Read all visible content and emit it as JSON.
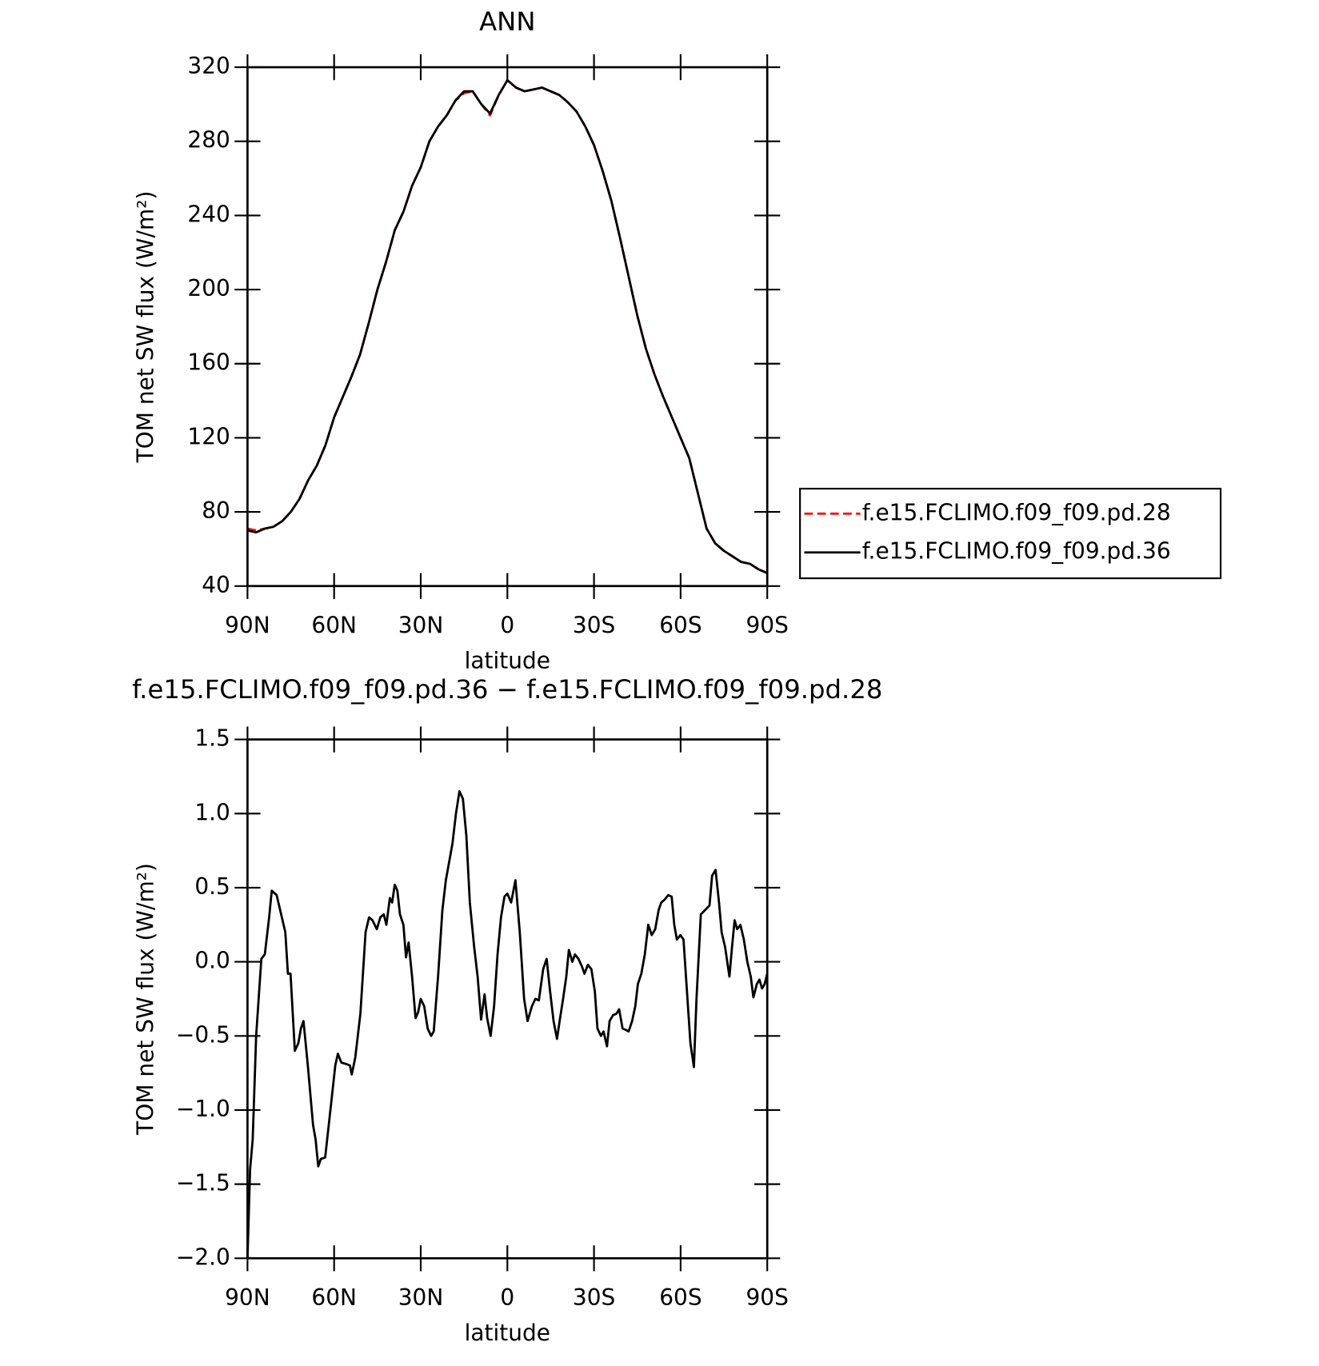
{
  "chart_data": [
    {
      "type": "line",
      "title": "ANN",
      "xlabel": "latitude",
      "ylabel": "TOM net SW flux (W/m²)",
      "xlim": [
        90,
        -90
      ],
      "xticks": [
        {
          "value": 90,
          "label": "90N"
        },
        {
          "value": 60,
          "label": "60N"
        },
        {
          "value": 30,
          "label": "30N"
        },
        0,
        {
          "value": -30,
          "label": "30S"
        },
        {
          "value": -60,
          "label": "60S"
        },
        {
          "value": -90,
          "label": "90S"
        }
      ],
      "ylim": [
        40,
        320
      ],
      "yticks": [
        40,
        80,
        120,
        160,
        200,
        240,
        280,
        320
      ],
      "legend": "right",
      "x": [
        90,
        87,
        84,
        81,
        78,
        75,
        72,
        69,
        66,
        63,
        60,
        57,
        54,
        51,
        48,
        45,
        42,
        39,
        36,
        33,
        30,
        27,
        24,
        21,
        18,
        15,
        12,
        9,
        6,
        3,
        0,
        -3,
        -6,
        -9,
        -12,
        -15,
        -18,
        -21,
        -24,
        -27,
        -30,
        -33,
        -36,
        -39,
        -42,
        -45,
        -48,
        -51,
        -54,
        -57,
        -60,
        -63,
        -66,
        -69,
        -72,
        -75,
        -78,
        -81,
        -84,
        -87,
        -90
      ],
      "series": [
        {
          "name": "f.e15.FCLIMO.f09_f09.pd.28",
          "color": "#ff0000",
          "linestyle": "dashed",
          "values": [
            71,
            70,
            71,
            72,
            75,
            80,
            87,
            97,
            105,
            116,
            131,
            142,
            153,
            165,
            182,
            200,
            215,
            232,
            242,
            256,
            266,
            280,
            288,
            294,
            302,
            306,
            307,
            300,
            294,
            305,
            313,
            309,
            307,
            308,
            309,
            307,
            305,
            301,
            296,
            288,
            278,
            264,
            248,
            228,
            207,
            186,
            168,
            154,
            142,
            131,
            120,
            109,
            90,
            71,
            63,
            59,
            56,
            53,
            52,
            49,
            47
          ]
        },
        {
          "name": "f.e15.FCLIMO.f09_f09.pd.36",
          "color": "#000000",
          "linestyle": "solid",
          "values": [
            70,
            69,
            71,
            72,
            75,
            80,
            87,
            97,
            105,
            116,
            131,
            142,
            153,
            165,
            182,
            200,
            215,
            232,
            242,
            256,
            266,
            280,
            288,
            294,
            302,
            307,
            307,
            300,
            295,
            305,
            313,
            309,
            307,
            308,
            309,
            307,
            305,
            301,
            296,
            288,
            278,
            264,
            248,
            228,
            207,
            186,
            168,
            154,
            142,
            131,
            120,
            109,
            90,
            71,
            63,
            59,
            56,
            53,
            52,
            49,
            47
          ]
        }
      ]
    },
    {
      "type": "line",
      "title": "f.e15.FCLIMO.f09_f09.pd.36 − f.e15.FCLIMO.f09_f09.pd.28",
      "xlabel": "latitude",
      "ylabel": "TOM net SW flux (W/m²)",
      "xlim": [
        90,
        -90
      ],
      "xticks": [
        {
          "value": 90,
          "label": "90N"
        },
        {
          "value": 60,
          "label": "60N"
        },
        {
          "value": 30,
          "label": "30N"
        },
        0,
        {
          "value": -30,
          "label": "30S"
        },
        {
          "value": -60,
          "label": "60S"
        },
        {
          "value": -90,
          "label": "90S"
        }
      ],
      "ylim": [
        -2,
        1.5
      ],
      "yticks": [
        {
          "value": -2,
          "label": "−2.0"
        },
        {
          "value": -1.5,
          "label": "−1.5"
        },
        {
          "value": -1,
          "label": "−1.0"
        },
        {
          "value": -0.5,
          "label": "−0.5"
        },
        {
          "value": 0,
          "label": "0.0"
        },
        0.5,
        {
          "value": 1,
          "label": "1.0"
        },
        1.5
      ],
      "x": [
        90.0,
        89.1,
        88.2,
        87.0,
        85.2,
        84.0,
        82.5,
        81.6,
        79.9,
        78.1,
        76.9,
        76.0,
        75.1,
        73.6,
        72.4,
        71.5,
        70.6,
        69.1,
        67.3,
        66.4,
        65.5,
        64.6,
        63.1,
        61.0,
        59.6,
        58.7,
        57.5,
        55.7,
        54.5,
        53.9,
        52.7,
        50.9,
        49.1,
        47.9,
        46.7,
        45.2,
        44.0,
        42.8,
        41.9,
        40.7,
        39.9,
        39.0,
        38.1,
        37.2,
        36.0,
        35.1,
        34.2,
        33.0,
        31.8,
        30.9,
        30.0,
        28.8,
        27.6,
        26.4,
        25.5,
        24.0,
        22.5,
        21.3,
        20.1,
        19.0,
        17.8,
        16.6,
        15.4,
        14.2,
        13.0,
        11.5,
        10.3,
        9.1,
        7.9,
        7.0,
        5.8,
        4.6,
        3.4,
        2.2,
        1.0,
        0.0,
        -1.3,
        -2.8,
        -4.3,
        -5.8,
        -7.0,
        -8.5,
        -9.7,
        -10.9,
        -12.4,
        -13.6,
        -14.8,
        -16.0,
        -17.2,
        -18.1,
        -19.3,
        -20.4,
        -21.3,
        -22.5,
        -23.4,
        -24.6,
        -25.8,
        -26.7,
        -27.9,
        -29.1,
        -30.3,
        -31.2,
        -32.4,
        -33.3,
        -34.5,
        -35.4,
        -36.6,
        -37.8,
        -38.7,
        -39.9,
        -41.1,
        -42.0,
        -43.2,
        -44.3,
        -45.2,
        -46.4,
        -47.6,
        -48.8,
        -50.0,
        -51.2,
        -52.4,
        -53.3,
        -54.5,
        -55.7,
        -56.9,
        -57.8,
        -58.7,
        -59.9,
        -61.0,
        -62.2,
        -63.4,
        -64.6,
        -65.5,
        -67.0,
        -68.5,
        -70.0,
        -70.9,
        -72.1,
        -73.3,
        -74.2,
        -75.4,
        -76.9,
        -77.8,
        -78.7,
        -79.6,
        -80.7,
        -81.9,
        -83.1,
        -84.3,
        -85.2,
        -86.4,
        -87.3,
        -88.2,
        -89.1,
        -90.0
      ],
      "series": [
        {
          "color": "#000000",
          "linestyle": "solid",
          "values": [
            -2.0,
            -1.4,
            -1.2,
            -0.5,
            0.02,
            0.05,
            0.3,
            0.48,
            0.45,
            0.3,
            0.2,
            -0.08,
            -0.08,
            -0.6,
            -0.55,
            -0.45,
            -0.4,
            -0.7,
            -1.1,
            -1.2,
            -1.38,
            -1.33,
            -1.32,
            -0.95,
            -0.7,
            -0.62,
            -0.68,
            -0.69,
            -0.7,
            -0.76,
            -0.65,
            -0.35,
            0.2,
            0.3,
            0.28,
            0.22,
            0.3,
            0.32,
            0.25,
            0.43,
            0.4,
            0.52,
            0.48,
            0.32,
            0.25,
            0.03,
            0.13,
            -0.1,
            -0.38,
            -0.34,
            -0.25,
            -0.3,
            -0.45,
            -0.5,
            -0.47,
            -0.1,
            0.35,
            0.55,
            0.68,
            0.8,
            1.0,
            1.15,
            1.1,
            0.85,
            0.4,
            0.1,
            -0.1,
            -0.39,
            -0.22,
            -0.38,
            -0.5,
            -0.3,
            0.05,
            0.3,
            0.44,
            0.46,
            0.4,
            0.55,
            0.2,
            -0.25,
            -0.4,
            -0.3,
            -0.25,
            -0.26,
            -0.05,
            0.02,
            -0.2,
            -0.4,
            -0.52,
            -0.4,
            -0.25,
            -0.1,
            0.08,
            0.0,
            0.05,
            0.02,
            -0.03,
            -0.08,
            -0.02,
            -0.05,
            -0.2,
            -0.45,
            -0.5,
            -0.47,
            -0.57,
            -0.4,
            -0.36,
            -0.35,
            -0.32,
            -0.45,
            -0.46,
            -0.47,
            -0.4,
            -0.3,
            -0.15,
            -0.08,
            0.05,
            0.25,
            0.18,
            0.22,
            0.35,
            0.4,
            0.42,
            0.45,
            0.44,
            0.25,
            0.15,
            0.18,
            0.15,
            -0.2,
            -0.55,
            -0.71,
            -0.25,
            0.32,
            0.35,
            0.38,
            0.58,
            0.62,
            0.4,
            0.2,
            0.1,
            -0.1,
            0.1,
            0.28,
            0.22,
            0.25,
            0.15,
            0.0,
            -0.1,
            -0.24,
            -0.15,
            -0.12,
            -0.18,
            -0.15,
            -0.08
          ]
        }
      ]
    }
  ]
}
